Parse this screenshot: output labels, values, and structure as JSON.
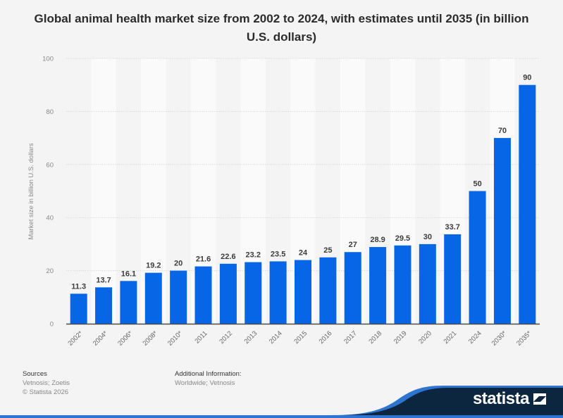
{
  "chart_data": {
    "type": "bar",
    "title": "Global animal health market size from 2002 to 2024, with estimates until 2035 (in billion U.S. dollars)",
    "xlabel": "",
    "ylabel": "Market size in billion U.S. dollars",
    "ylim": [
      0,
      100
    ],
    "yticks": [
      0,
      20,
      40,
      60,
      80,
      100
    ],
    "grid": true,
    "categories": [
      "2002*",
      "2004*",
      "2006*",
      "2008*",
      "2010*",
      "2011",
      "2012",
      "2013",
      "2014",
      "2015",
      "2016",
      "2017",
      "2018",
      "2019",
      "2020",
      "2021",
      "2024",
      "2030*",
      "2035*"
    ],
    "values": [
      11.3,
      13.7,
      16.1,
      19.2,
      20,
      21.6,
      22.6,
      23.2,
      23.5,
      24,
      25,
      27,
      28.9,
      29.5,
      30,
      33.7,
      50,
      70,
      90
    ],
    "labels": [
      "11.3",
      "13.7",
      "16.1",
      "19.2",
      "20",
      "21.6",
      "22.6",
      "23.2",
      "23.5",
      "24",
      "25",
      "27",
      "28.9",
      "29.5",
      "30",
      "33.7",
      "50",
      "70",
      "90"
    ],
    "bar_color": "#0766e6"
  },
  "footer": {
    "sources_heading": "Sources",
    "sources_text": "Vetnosis; Zoetis",
    "copyright": "© Statista 2026",
    "additional_heading": "Additional Information:",
    "additional_text": "Worldwide; Vetnosis",
    "brand": "statista"
  }
}
